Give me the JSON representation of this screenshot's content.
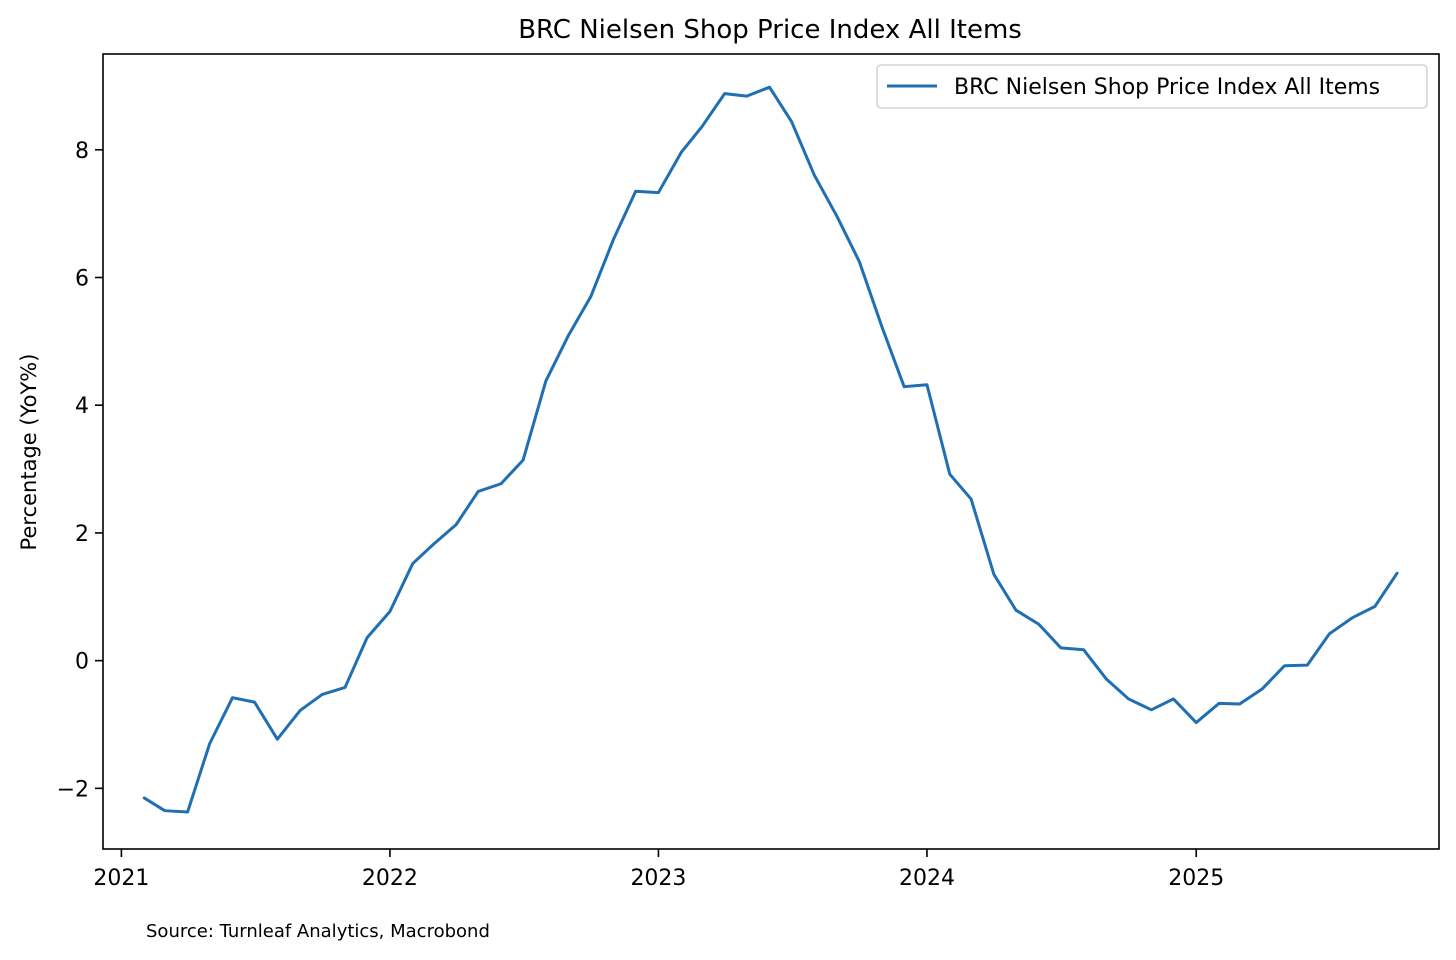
{
  "chart_data": {
    "type": "line",
    "title": "BRC Nielsen Shop Price Index All Items",
    "xlabel": "",
    "ylabel": "Percentage (YoY%)",
    "x_ticks": [
      "2021",
      "2022",
      "2023",
      "2024",
      "2025"
    ],
    "y_ticks": [
      "−2",
      "0",
      "2",
      "4",
      "6",
      "8"
    ],
    "ylim": [
      -2.95,
      9.5
    ],
    "xlim": [
      "2020-12-07",
      "2025-11-27"
    ],
    "grid": false,
    "legend_position": "top-right",
    "source": "Source: Turnleaf Analytics, Macrobond",
    "colors": {
      "series": "#1f6fb2",
      "axes": "#000000"
    },
    "x": [
      "2021-02",
      "2021-03",
      "2021-04",
      "2021-05",
      "2021-06",
      "2021-07",
      "2021-08",
      "2021-09",
      "2021-10",
      "2021-11",
      "2021-12",
      "2022-01",
      "2022-02",
      "2022-03",
      "2022-04",
      "2022-05",
      "2022-06",
      "2022-07",
      "2022-08",
      "2022-09",
      "2022-10",
      "2022-11",
      "2022-12",
      "2023-01",
      "2023-02",
      "2023-03",
      "2023-04",
      "2023-05",
      "2023-06",
      "2023-07",
      "2023-08",
      "2023-09",
      "2023-10",
      "2023-11",
      "2023-12",
      "2024-01",
      "2024-02",
      "2024-03",
      "2024-04",
      "2024-05",
      "2024-06",
      "2024-07",
      "2024-08",
      "2024-09",
      "2024-10",
      "2024-11",
      "2024-12",
      "2025-01",
      "2025-02",
      "2025-03",
      "2025-04",
      "2025-05",
      "2025-06",
      "2025-07",
      "2025-08",
      "2025-09",
      "2025-10"
    ],
    "series": [
      {
        "name": "BRC Nielsen Shop Price Index All Items",
        "values": [
          -2.15,
          -2.35,
          -2.37,
          -1.3,
          -0.58,
          -0.65,
          -1.23,
          -0.78,
          -0.53,
          -0.42,
          0.36,
          0.77,
          1.52,
          1.82,
          2.13,
          2.65,
          2.77,
          3.14,
          4.38,
          5.1,
          5.7,
          6.6,
          7.35,
          7.33,
          7.96,
          8.36,
          8.88,
          8.84,
          8.98,
          8.44,
          7.6,
          6.95,
          6.25,
          5.22,
          4.29,
          4.32,
          2.92,
          2.53,
          1.35,
          0.79,
          0.57,
          0.2,
          0.17,
          -0.29,
          -0.6,
          -0.77,
          -0.6,
          -0.97,
          -0.67,
          -0.68,
          -0.44,
          -0.08,
          -0.07,
          0.42,
          0.67,
          0.85,
          1.37
        ]
      }
    ]
  }
}
